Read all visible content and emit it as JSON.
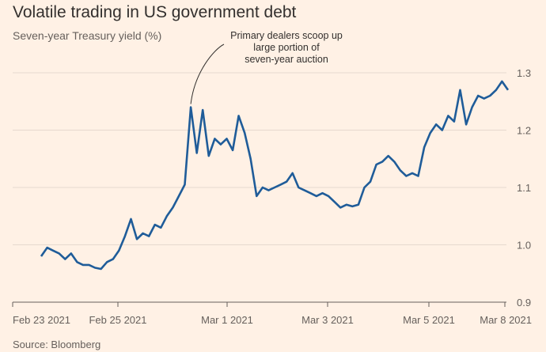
{
  "title": "Volatile trading in US government debt",
  "subtitle": "Seven-year Treasury yield (%)",
  "source": "Source: Bloomberg",
  "chart_data": {
    "type": "line",
    "title": "Volatile trading in US government debt",
    "ylabel": "Seven-year Treasury yield (%)",
    "xlabel": "",
    "ylim": [
      0.9,
      1.3
    ],
    "y_ticks": [
      "0.9",
      "1.0",
      "1.1",
      "1.2",
      "1.3"
    ],
    "x_ticks": [
      "Feb 23 2021",
      "Feb 25 2021",
      "Mar 1 2021",
      "Mar 3 2021",
      "Mar 5 2021",
      "Mar 8 2021"
    ],
    "grid": "horizontal",
    "line_color": "#1f5c99",
    "annotation": {
      "lines": [
        "Primary dealers scoop up",
        "large portion of",
        "seven-year auction"
      ]
    },
    "series": [
      {
        "x": [
          "Feb 23",
          "Feb 23",
          "Feb 23",
          "Feb 23",
          "Feb 23",
          "Feb 24",
          "Feb 24",
          "Feb 24",
          "Feb 24",
          "Feb 24",
          "Feb 24",
          "Feb 24",
          "Feb 24",
          "Feb 25",
          "Feb 25",
          "Feb 25",
          "Feb 25",
          "Feb 25",
          "Feb 25",
          "Feb 25",
          "Feb 25",
          "Feb 26",
          "Feb 26",
          "Feb 26",
          "Feb 26",
          "Feb 26",
          "Feb 26",
          "Feb 26",
          "Feb 26",
          "Feb 26",
          "Feb 26",
          "Feb 26",
          "Feb 26",
          "Mar 1",
          "Mar 1",
          "Mar 1",
          "Mar 1",
          "Mar 1",
          "Mar 1",
          "Mar 1",
          "Mar 2",
          "Mar 2",
          "Mar 2",
          "Mar 2",
          "Mar 2",
          "Mar 2",
          "Mar 3",
          "Mar 3",
          "Mar 3",
          "Mar 3",
          "Mar 3",
          "Mar 3",
          "Mar 3",
          "Mar 4",
          "Mar 4",
          "Mar 4",
          "Mar 4",
          "Mar 4",
          "Mar 4",
          "Mar 4",
          "Mar 4",
          "Mar 5",
          "Mar 5",
          "Mar 5",
          "Mar 5",
          "Mar 5",
          "Mar 5",
          "Mar 5",
          "Mar 5",
          "Mar 8",
          "Mar 8",
          "Mar 8",
          "Mar 8",
          "Mar 8",
          "Mar 8",
          "Mar 8",
          "Mar 8",
          "Mar 8",
          "Mar 8"
        ],
        "values": [
          0.98,
          0.995,
          0.99,
          0.985,
          0.975,
          0.985,
          0.97,
          0.965,
          0.965,
          0.96,
          0.958,
          0.97,
          0.975,
          0.99,
          1.015,
          1.045,
          1.01,
          1.02,
          1.015,
          1.035,
          1.03,
          1.05,
          1.065,
          1.085,
          1.105,
          1.24,
          1.16,
          1.235,
          1.155,
          1.185,
          1.175,
          1.185,
          1.165,
          1.225,
          1.195,
          1.15,
          1.085,
          1.1,
          1.095,
          1.1,
          1.105,
          1.11,
          1.125,
          1.1,
          1.095,
          1.09,
          1.085,
          1.09,
          1.085,
          1.075,
          1.065,
          1.07,
          1.067,
          1.07,
          1.1,
          1.11,
          1.14,
          1.145,
          1.155,
          1.145,
          1.13,
          1.12,
          1.125,
          1.12,
          1.17,
          1.195,
          1.21,
          1.2,
          1.225,
          1.215,
          1.27,
          1.21,
          1.24,
          1.26,
          1.255,
          1.26,
          1.27,
          1.285,
          1.27
        ]
      }
    ]
  }
}
